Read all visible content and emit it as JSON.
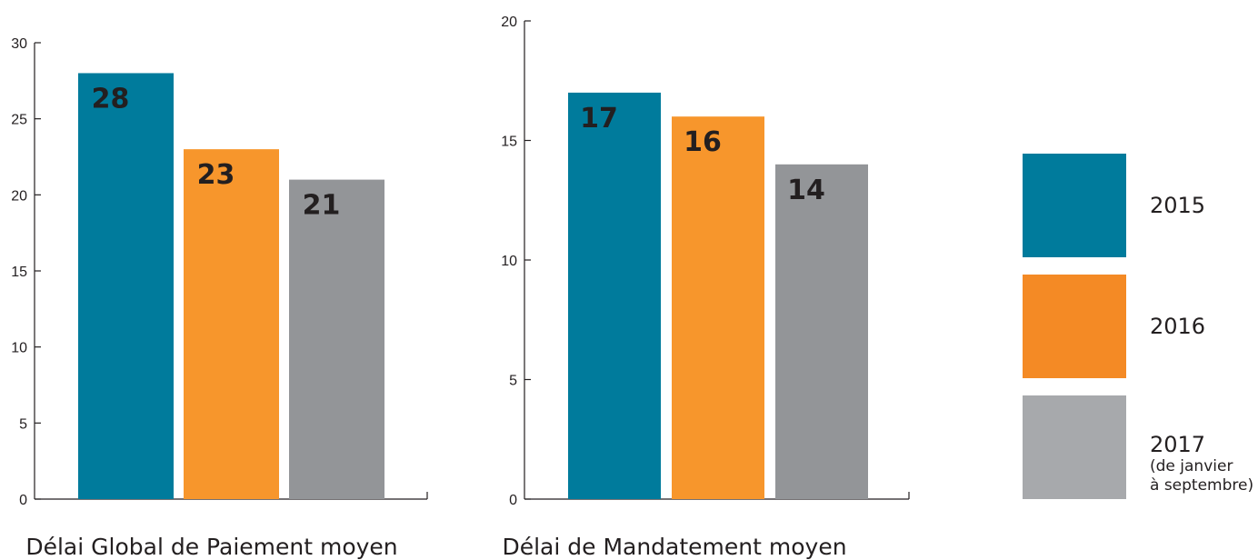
{
  "chart_data": [
    {
      "type": "bar",
      "title": "Délai Global de Paiement moyen",
      "categories": [
        "2015",
        "2016",
        "2017"
      ],
      "values": [
        28,
        23,
        21
      ],
      "ylim": [
        0,
        30
      ],
      "yticks": [
        0,
        5,
        10,
        15,
        20,
        25,
        30
      ],
      "grid": false
    },
    {
      "type": "bar",
      "title": "Délai de Mandatement moyen",
      "categories": [
        "2015",
        "2016",
        "2017"
      ],
      "values": [
        17,
        16,
        14
      ],
      "ylim": [
        0,
        20
      ],
      "yticks": [
        0,
        5,
        10,
        15,
        20
      ],
      "grid": false
    }
  ],
  "legend": {
    "placement": "right",
    "items": [
      {
        "label": "2015",
        "sublabel": [],
        "color": "#007b9c"
      },
      {
        "label": "2016",
        "sublabel": [],
        "color": "#f7962c"
      },
      {
        "label": "2017",
        "sublabel": [
          "(de janvier",
          "à septembre)"
        ],
        "color": "#939598"
      }
    ]
  },
  "colors": {
    "legend_2016": "#f48a25",
    "legend_2017": "#a7a9ac"
  }
}
